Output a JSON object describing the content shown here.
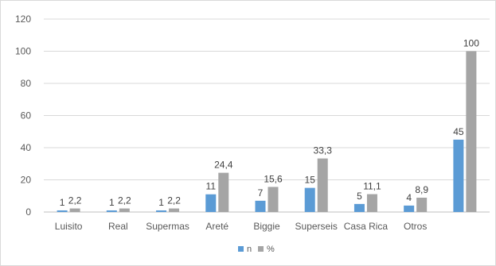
{
  "chart_data": {
    "type": "bar",
    "categories": [
      "Luisito",
      "Real",
      "Supermas",
      "Areté",
      "Biggie",
      "Superseis",
      "Casa Rica",
      "Otros",
      ""
    ],
    "series": [
      {
        "name": "n",
        "color": "#5b9bd5",
        "values": [
          1,
          1,
          1,
          11,
          7,
          15,
          5,
          4,
          45
        ],
        "labels": [
          "1",
          "1",
          "1",
          "11",
          "7",
          "15",
          "5",
          "4",
          "45"
        ]
      },
      {
        "name": "%",
        "color": "#a5a5a5",
        "values": [
          2.2,
          2.2,
          2.2,
          24.4,
          15.6,
          33.3,
          11.1,
          8.9,
          100
        ],
        "labels": [
          "2,2",
          "2,2",
          "2,2",
          "24,4",
          "15,6",
          "33,3",
          "11,1",
          "8,9",
          "100"
        ]
      }
    ],
    "y_ticks": [
      "0",
      "20",
      "40",
      "60",
      "80",
      "100",
      "120"
    ],
    "ylim": [
      0,
      120
    ],
    "grid": true,
    "legend_position": "bottom"
  }
}
